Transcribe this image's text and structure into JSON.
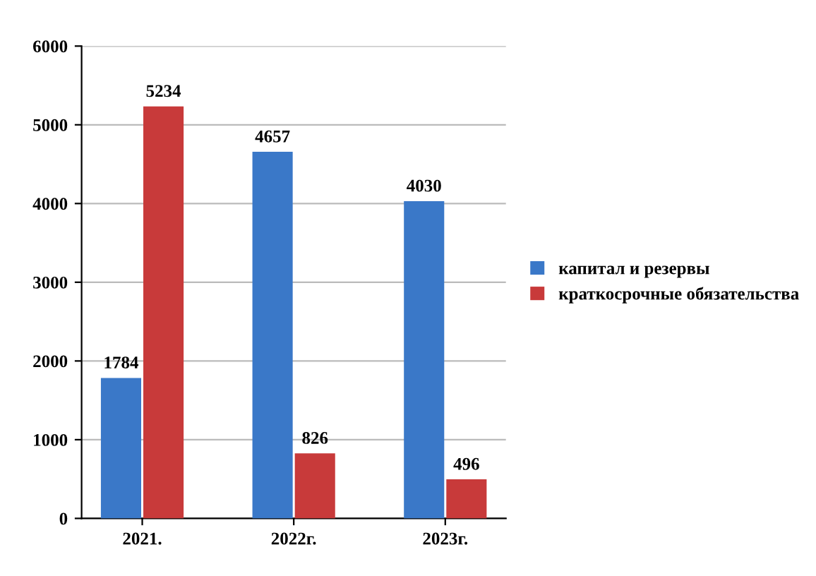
{
  "chart_data": {
    "type": "bar",
    "categories": [
      "2021.",
      "2022г.",
      "2023г."
    ],
    "series": [
      {
        "name": "капитал и резервы",
        "color": "#3a78c8",
        "values": [
          1784,
          4657,
          4030
        ]
      },
      {
        "name": "краткосрочные обязательства",
        "color": "#c83a3a",
        "values": [
          5234,
          826,
          496
        ]
      }
    ],
    "ylim": [
      0,
      6000
    ],
    "yticks": [
      0,
      1000,
      2000,
      3000,
      4000,
      5000,
      6000
    ],
    "grid": "y",
    "legend": "right",
    "data_labels": true
  }
}
